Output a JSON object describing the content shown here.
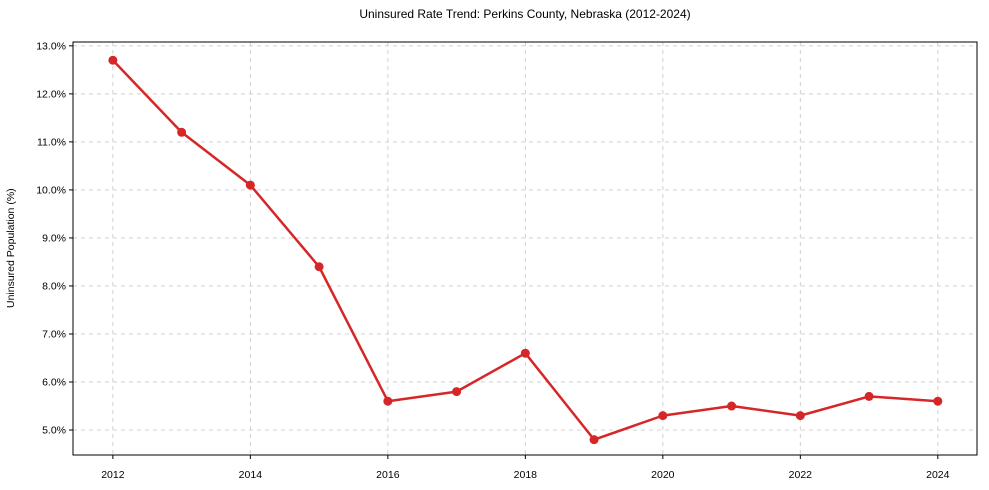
{
  "chart_data": {
    "type": "line",
    "title": "Uninsured Rate Trend: Perkins County, Nebraska (2012-2024)",
    "xlabel": "",
    "ylabel": "Uninsured Population (%)",
    "x": [
      2012,
      2013,
      2014,
      2015,
      2016,
      2017,
      2018,
      2019,
      2020,
      2021,
      2022,
      2023,
      2024
    ],
    "values": [
      12.7,
      11.2,
      10.1,
      8.4,
      5.6,
      5.8,
      6.6,
      4.8,
      5.3,
      5.5,
      5.3,
      5.7,
      5.6
    ],
    "xlim": [
      2011.42,
      2024.57
    ],
    "ylim": [
      4.48,
      13.08
    ],
    "xticks": {
      "values": [
        2012,
        2014,
        2016,
        2018,
        2020,
        2022,
        2024
      ],
      "labels": [
        "2012",
        "2014",
        "2016",
        "2018",
        "2020",
        "2022",
        "2024"
      ]
    },
    "yticks": {
      "values": [
        5,
        6,
        7,
        8,
        9,
        10,
        11,
        12,
        13
      ],
      "labels": [
        "5.0%",
        "6.0%",
        "7.0%",
        "8.0%",
        "9.0%",
        "10.0%",
        "11.0%",
        "12.0%",
        "13.0%"
      ]
    },
    "grid": true,
    "grid_style": "dashed",
    "legend": null,
    "line_color": "#d62728",
    "grid_color": "#cdcdcd",
    "axis_color": "#000000",
    "marker": "circle"
  }
}
